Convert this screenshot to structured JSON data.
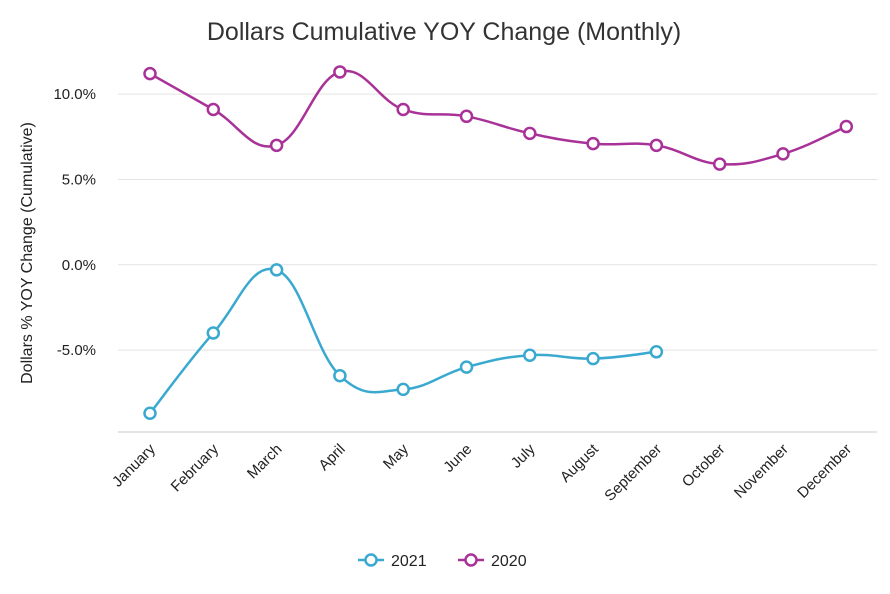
{
  "chart_data": {
    "type": "line",
    "title": "Dollars Cumulative YOY Change (Monthly)",
    "xlabel": "",
    "ylabel": "Dollars % YOY Change (Cumulative)",
    "categories": [
      "January",
      "February",
      "March",
      "April",
      "May",
      "June",
      "July",
      "August",
      "September",
      "October",
      "November",
      "December"
    ],
    "ylim": [
      -9.8,
      12.0
    ],
    "yticks": [
      -5.0,
      0.0,
      5.0,
      10.0
    ],
    "ytick_labels": [
      "-5.0%",
      "0.0%",
      "5.0%",
      "10.0%"
    ],
    "grid": true,
    "legend_position": "bottom-center",
    "series": [
      {
        "name": "2021",
        "color": "#3aa9d0",
        "values": [
          -8.7,
          -4.0,
          -0.3,
          -6.5,
          -7.3,
          -6.0,
          -5.3,
          -5.5,
          -5.1,
          null,
          null,
          null
        ]
      },
      {
        "name": "2020",
        "color": "#a83298",
        "values": [
          11.2,
          9.1,
          7.0,
          11.3,
          9.1,
          8.7,
          7.7,
          7.1,
          7.0,
          5.9,
          6.5,
          8.1
        ]
      }
    ]
  }
}
